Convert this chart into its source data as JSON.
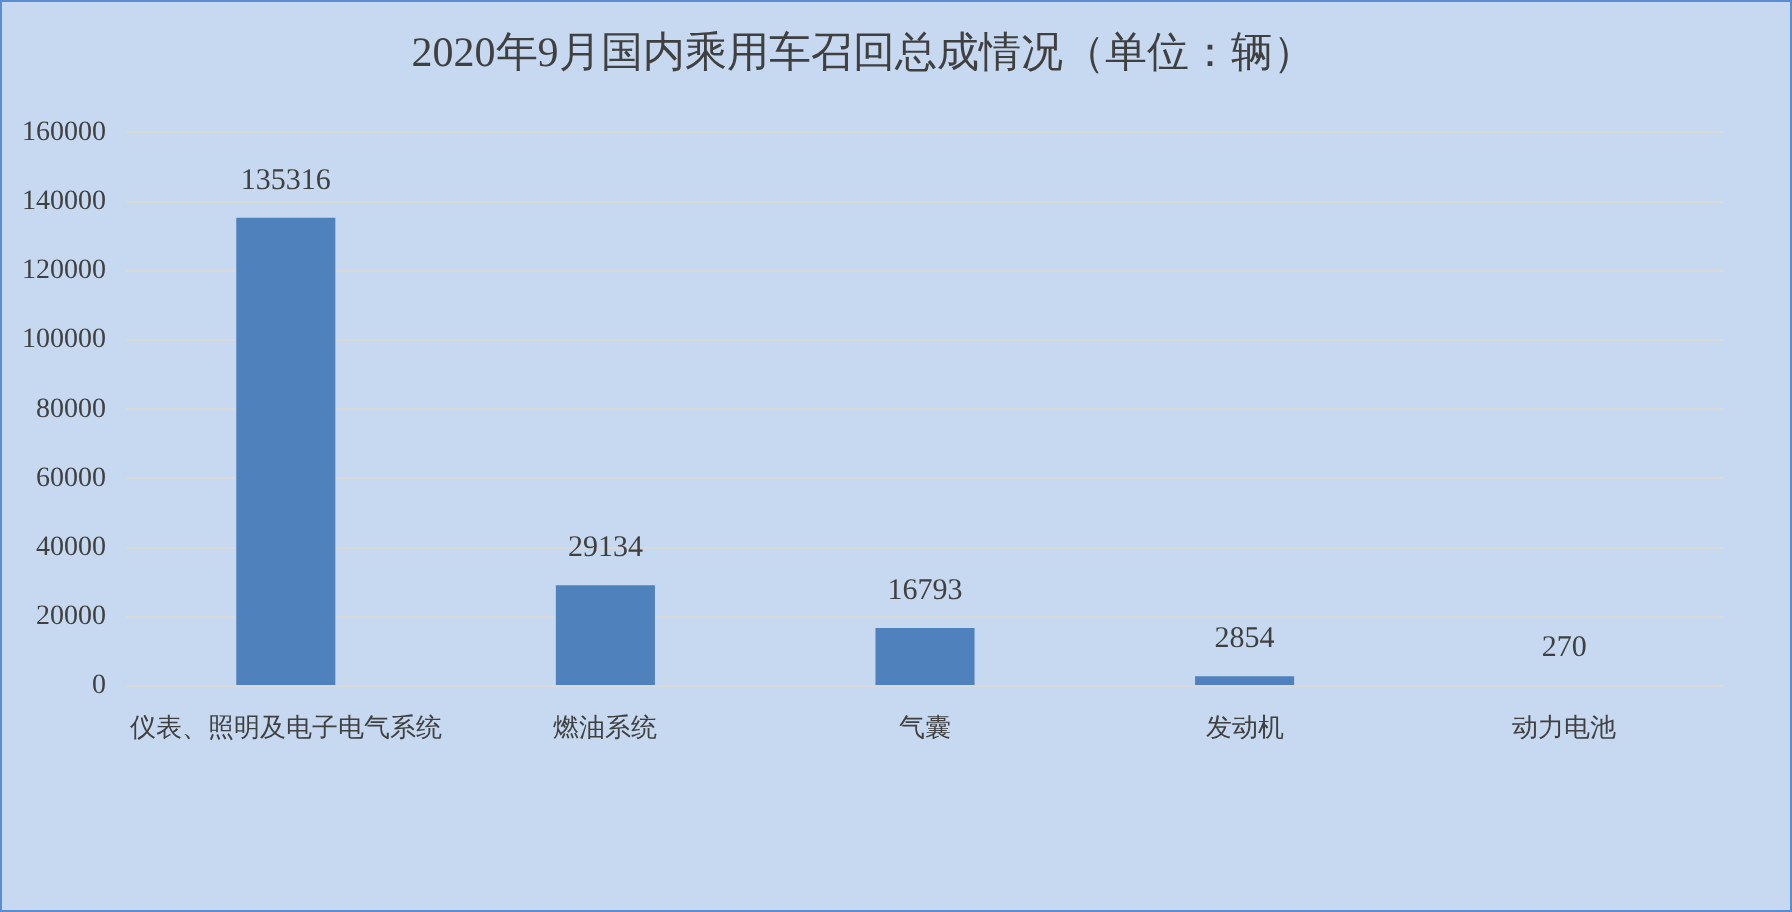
{
  "chart_data": {
    "type": "bar",
    "title": "2020年9月国内乘用车召回总成情况（单位：辆）",
    "categories": [
      "仪表、照明及电子电气系统",
      "燃油系统",
      "气囊",
      "发动机",
      "动力电池"
    ],
    "values": [
      135316,
      29134,
      16793,
      2854,
      270
    ],
    "color": "#4f81bd",
    "ylim": [
      0,
      160000
    ],
    "yticks": [
      0,
      20000,
      40000,
      60000,
      80000,
      100000,
      120000,
      140000,
      160000
    ],
    "grid": "y",
    "data_labels": true
  }
}
